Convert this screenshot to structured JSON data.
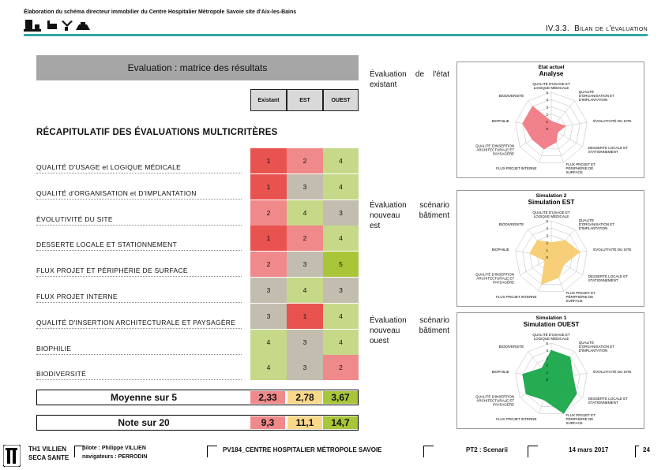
{
  "header": {
    "doc_title": "Élaboration du schéma directeur immobilier du Centre Hospitalier Métropole Savoie site d'Aix-les-Bains",
    "section_num": "IV.3.3.",
    "section_name": "Bilan de l'évaluation"
  },
  "matrix": {
    "banner": "Evaluation : matrice des résultats",
    "columns": [
      "Existant",
      "EST",
      "OUEST"
    ],
    "recap_title": "RÉCAPITULATIF DES ÉVALUATIONS MULTICRITÈRES",
    "rows": [
      {
        "label": "QUALITÉ D'USAGE et LOGIQUE MÉDICALE",
        "values": [
          "1",
          "2",
          "4"
        ]
      },
      {
        "label": "QUALITÉ d'ORGANISATION et D'IMPLANTATION",
        "values": [
          "1",
          "3",
          "4"
        ]
      },
      {
        "label": "ÉVOLUTIVITÉ DU SITE",
        "values": [
          "2",
          "4",
          "3"
        ]
      },
      {
        "label": "DESSERTE LOCALE ET STATIONNEMENT",
        "values": [
          "1",
          "2",
          "4"
        ]
      },
      {
        "label": "FLUX PROJET ET PÉRIPHÉRIE DE SURFACE",
        "values": [
          "2",
          "3",
          "5"
        ]
      },
      {
        "label": "FLUX PROJET INTERNE",
        "values": [
          "3",
          "4",
          "3"
        ]
      },
      {
        "label": "QUALITÉ D'INSERTION ARCHITECTURALE ET PAYSAGÈRE",
        "values": [
          "3",
          "1",
          "4"
        ]
      },
      {
        "label": "BIOPHILIE",
        "values": [
          "4",
          "3",
          "4"
        ]
      },
      {
        "label": "BIODIVERSITÉ",
        "values": [
          "4",
          "3",
          "2"
        ]
      }
    ],
    "average_label": "Moyenne sur 5",
    "averages": [
      "2,33",
      "2,78",
      "3,67"
    ],
    "score_label": "Note sur 20",
    "scores": [
      "9,3",
      "11,1",
      "14,7"
    ]
  },
  "colors": {
    "1": "#e8534f",
    "2": "#f0898a",
    "3": "#c3bdaf",
    "4": "#c5d989",
    "5": "#a9c538",
    "avg_existant": "#f08a8a",
    "avg_est": "#f9d88a",
    "avg_ouest": "#a9c538",
    "radar_existant": "#f07a85",
    "radar_est": "#f7cc72",
    "radar_ouest": "#1aa84a"
  },
  "evaluations": [
    {
      "text": [
        "Évaluation de l'état",
        "existant"
      ]
    },
    {
      "text": [
        "Évaluation scénario",
        "nouveau bâtiment",
        "est"
      ]
    },
    {
      "text": [
        "Évaluation scénario",
        "nouveau bâtiment",
        "ouest"
      ]
    }
  ],
  "radar_axes": [
    "QUALITÉ D'USAGE ET LOGIQUE MÉDICALE",
    "QUALITÉ D'ORGANISATION ET D'IMPLANTATION",
    "ÉVOLUTIVITÉ DU SITE",
    "DESSERTE LOCALE ET STATIONNEMENT",
    "FLUX PROJET ET PÉRIPHÉRIE DE SURFACE",
    "FLUX PROJET INTERNE",
    "QUALITÉ D'INSERTION ARCHITECTURALE ET PAYSAGÈRE",
    "BIOPHILIE",
    "BIODIVERSITÉ"
  ],
  "radar_ticks": [
    "5",
    "4",
    "3",
    "2",
    "1",
    "0"
  ],
  "charts": [
    {
      "title1": "Etat actuel",
      "title2": "Analyse",
      "color_key": "radar_existant",
      "values": [
        1,
        1,
        2,
        1,
        2,
        3,
        3,
        4,
        4
      ]
    },
    {
      "title1": "Simulation 2",
      "title2": "Simulation EST",
      "color_key": "radar_est",
      "values": [
        2,
        3,
        4,
        2,
        3,
        4,
        1,
        3,
        3
      ]
    },
    {
      "title1": "Simulation 1",
      "title2": "Simulation OUEST",
      "color_key": "radar_ouest",
      "values": [
        4,
        4,
        3,
        4,
        5,
        3,
        4,
        4,
        2
      ]
    }
  ],
  "footer": {
    "company1": "TH1 VILLIEN",
    "company2": "SECA SANTE",
    "pilote": "pilote : Philippe VILLIEN",
    "navigateurs": "navigateurs : PERRODIN",
    "project": "PV184_CENTRE HOSPITALIER MÉTROPOLE SAVOIE",
    "phase": "PT2 : Scenarii",
    "date": "14 mars 2017",
    "page": "24"
  }
}
